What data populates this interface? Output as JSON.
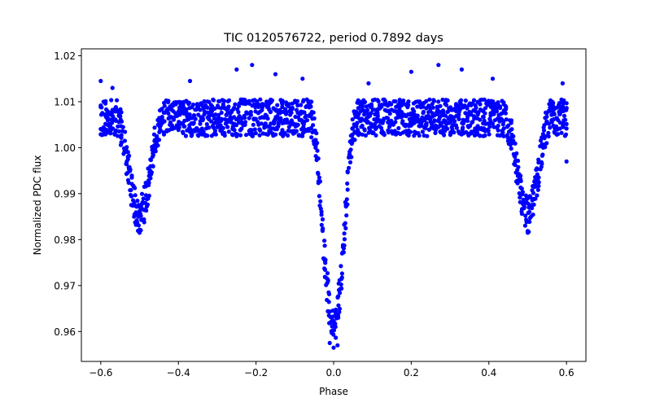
{
  "chart_data": {
    "type": "scatter",
    "title": "TIC 0120576722, period 0.7892 days",
    "xlabel": "Phase",
    "ylabel": "Normalized PDC flux",
    "xlim": [
      -0.65,
      0.65
    ],
    "ylim": [
      0.9535,
      1.0215
    ],
    "x_ticks": [
      -0.6,
      -0.4,
      -0.2,
      0.0,
      0.2,
      0.4,
      0.6
    ],
    "x_tick_labels": [
      "−0.6",
      "−0.4",
      "−0.2",
      "0.0",
      "0.2",
      "0.4",
      "0.6"
    ],
    "y_ticks": [
      0.96,
      0.97,
      0.98,
      0.99,
      1.0,
      1.01,
      1.02
    ],
    "y_tick_labels": [
      "0.96",
      "0.97",
      "0.98",
      "0.99",
      "1.00",
      "1.01",
      "1.02"
    ],
    "grid": false,
    "series": [
      {
        "name": "PDC flux",
        "color": "#0000ff",
        "marker": "circle",
        "phase_range": [
          -0.6,
          0.6
        ],
        "phase_step": 0.005,
        "light_curve_model": {
          "baseline_flux": 1.0065,
          "primary_eclipse": {
            "center_phase": 0.0,
            "min_flux": 0.9615,
            "half_width": 0.06
          },
          "secondary_eclipse": {
            "center_phase": 0.5,
            "min_flux": 0.9855,
            "half_width": 0.06
          },
          "scatter_half_range": 0.004
        },
        "outliers": [
          {
            "x": -0.6,
            "y": 1.0145
          },
          {
            "x": -0.57,
            "y": 1.013
          },
          {
            "x": -0.37,
            "y": 1.0145
          },
          {
            "x": -0.25,
            "y": 1.017
          },
          {
            "x": -0.21,
            "y": 1.018
          },
          {
            "x": -0.15,
            "y": 1.016
          },
          {
            "x": -0.08,
            "y": 1.015
          },
          {
            "x": 0.09,
            "y": 1.014
          },
          {
            "x": 0.2,
            "y": 1.0165
          },
          {
            "x": 0.27,
            "y": 1.018
          },
          {
            "x": 0.33,
            "y": 1.017
          },
          {
            "x": 0.41,
            "y": 1.015
          },
          {
            "x": 0.59,
            "y": 1.014
          },
          {
            "x": 0.6,
            "y": 0.997
          },
          {
            "x": -0.0,
            "y": 0.9565
          },
          {
            "x": 0.01,
            "y": 0.957
          },
          {
            "x": -0.01,
            "y": 0.9575
          },
          {
            "x": -0.5,
            "y": 0.9815
          },
          {
            "x": 0.5,
            "y": 0.9815
          }
        ]
      }
    ]
  }
}
